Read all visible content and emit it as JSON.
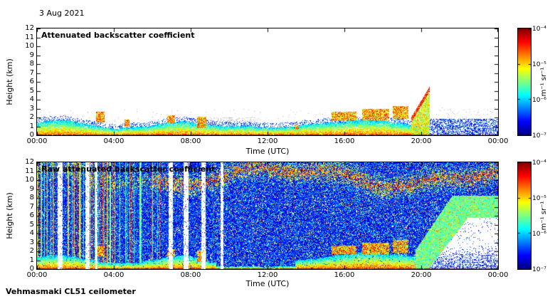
{
  "date_label": "3 Aug 2021",
  "footer": "Vehmasmaki CL51 ceilometer",
  "panels": [
    {
      "title": "Attenuated backscatter coefficient",
      "xlabel": "Time (UTC)",
      "ylabel": "Height (km)"
    },
    {
      "title": "Raw attenuated backscatter coefficient",
      "xlabel": "Time (UTC)",
      "ylabel": "Height (km)"
    }
  ],
  "axes": {
    "x_ticks": [
      "00:00",
      "04:00",
      "08:00",
      "12:00",
      "16:00",
      "20:00",
      "00:00"
    ],
    "y_ticks": [
      0,
      1,
      2,
      3,
      4,
      5,
      6,
      7,
      8,
      9,
      10,
      11,
      12
    ]
  },
  "colorbar": {
    "ticks": [
      "10⁻⁴",
      "10⁻⁵",
      "10⁻⁶",
      "10⁻⁷"
    ],
    "unit": "m⁻¹ sr⁻¹",
    "min": "1e-7",
    "max": "1e-4",
    "colormap": "jet",
    "scale": "log"
  },
  "chart_data": [
    {
      "type": "heatmap",
      "title": "Attenuated backscatter coefficient",
      "xlabel": "Time (UTC)",
      "ylabel": "Height (km)",
      "x_range_hours": [
        0,
        24
      ],
      "x_ticks": [
        "00:00",
        "04:00",
        "08:00",
        "12:00",
        "16:00",
        "20:00",
        "00:00"
      ],
      "y_range_km": [
        0,
        12
      ],
      "y_ticks": [
        0,
        1,
        2,
        3,
        4,
        5,
        6,
        7,
        8,
        9,
        10,
        11,
        12
      ],
      "colormap": "jet",
      "color_scale": "log",
      "color_range": [
        "1e-7",
        "1e-4"
      ],
      "color_unit": "m⁻¹ sr⁻¹",
      "legend_position": "right-colorbar",
      "grid": false,
      "features": [
        "Aerosol boundary-layer signal (green/yellow/red) from the surface up to ~1-2.5 km between 00:00 and ~20:30",
        "Low cloud/fog returns near 1-3 km around 03:15, 04:40, 07:00, 08:30 and 15:30-19:15",
        "Strong plume rising from ~2 km to ~5.5 km between 19:30 and 20:30 with red upper edge",
        "After ~20:30 only sparse blue noise speckle below ~2 km remains until 24:00",
        "Thin strong (dark red) return at ground level across the whole day",
        "Light grey/blue speckle fringe just above the boundary layer"
      ]
    },
    {
      "type": "heatmap",
      "title": "Raw attenuated backscatter coefficient",
      "xlabel": "Time (UTC)",
      "ylabel": "Height (km)",
      "x_range_hours": [
        0,
        24
      ],
      "x_ticks": [
        "00:00",
        "04:00",
        "08:00",
        "12:00",
        "16:00",
        "20:00",
        "00:00"
      ],
      "y_range_km": [
        0,
        12
      ],
      "y_ticks": [
        0,
        1,
        2,
        3,
        4,
        5,
        6,
        7,
        8,
        9,
        10,
        11,
        12
      ],
      "colormap": "jet",
      "color_scale": "log",
      "color_range": [
        "1e-7",
        "1e-4"
      ],
      "color_unit": "m⁻¹ sr⁻¹",
      "legend_position": "right-colorbar",
      "grid": false,
      "features": [
        "Entire panel filled with instrument noise speckle (blue/cyan base with green-yellow-red salt)",
        "Saturated vertical green/yellow streaks between 00:00 and ~06:30",
        "White (no data) vertical gaps near 01:10, 02:35, 03:05, 06:55, 07:45, 08:40 and 09:35",
        "Wavy orange/red noise band near 10-12 km, strongest between ~09:00 and 21:00",
        "Same boundary-layer and cloud returns as the top panel below ~3 km",
        "Green plume rising from ~2 km at 19:45 to ~8 km by 21:30, drifting right to 24:00",
        "Clean white region with sparse blue speckle below the plume after ~20:30"
      ]
    }
  ]
}
